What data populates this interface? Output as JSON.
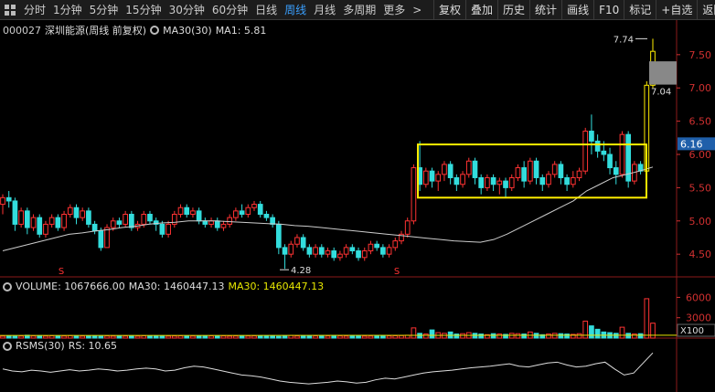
{
  "toolbar": {
    "periods": [
      {
        "label": "分时",
        "active": false
      },
      {
        "label": "1分钟",
        "active": false
      },
      {
        "label": "5分钟",
        "active": false
      },
      {
        "label": "15分钟",
        "active": false
      },
      {
        "label": "30分钟",
        "active": false
      },
      {
        "label": "60分钟",
        "active": false
      },
      {
        "label": "日线",
        "active": false
      },
      {
        "label": "周线",
        "active": true
      },
      {
        "label": "月线",
        "active": false
      },
      {
        "label": "多周期",
        "active": false
      },
      {
        "label": "更多",
        "active": false
      }
    ],
    "more_arrow": ">",
    "buttons": [
      "复权",
      "叠加",
      "历史",
      "统计",
      "画线",
      "F10",
      "标记",
      "+自选",
      "返回"
    ]
  },
  "stock": {
    "code": "000027",
    "name": "深圳能源(周线 前复权)",
    "ma_label": "MA30(30)",
    "ma_value": "MA1: 5.81"
  },
  "price_axis": {
    "ticks": [
      "7.50",
      "7.00",
      "6.50",
      "6.00",
      "5.50",
      "5.00",
      "4.50"
    ],
    "current_tag": "6.16"
  },
  "annotations": {
    "high_label": "7.74",
    "close_label": "7.04",
    "low_label": "4.28",
    "s_marker": "S"
  },
  "volume": {
    "label": "VOLUME: 1067666.00",
    "ma_label": "MA30: 1460447.13",
    "ma_yellow": "MA30: 1460447.13",
    "ticks": [
      "6000",
      "3000"
    ],
    "unit": "X100"
  },
  "rsms": {
    "label": "RSMS(30)",
    "value": "RS: 10.65"
  },
  "colors": {
    "up": "#ff3333",
    "down": "#33dddd",
    "ma": "#cccccc",
    "box": "#ffee00",
    "grid": "#8b1a1a",
    "axis_text": "#d03030"
  },
  "chart_data": {
    "type": "candlestick",
    "ylim": [
      4.2,
      7.8
    ],
    "volume_ylim": [
      0,
      7000
    ],
    "candles": [
      [
        5.25,
        5.35,
        5.1,
        5.4
      ],
      [
        5.35,
        5.3,
        5.2,
        5.45
      ],
      [
        5.3,
        4.95,
        4.85,
        5.35
      ],
      [
        4.95,
        5.15,
        4.9,
        5.2
      ],
      [
        5.15,
        4.9,
        4.8,
        5.2
      ],
      [
        4.9,
        5.05,
        4.85,
        5.1
      ],
      [
        5.05,
        4.8,
        4.75,
        5.1
      ],
      [
        4.8,
        4.95,
        4.75,
        5.0
      ],
      [
        4.95,
        5.05,
        4.9,
        5.1
      ],
      [
        5.05,
        4.9,
        4.85,
        5.1
      ],
      [
        4.9,
        5.1,
        4.85,
        5.15
      ],
      [
        5.1,
        5.2,
        5.05,
        5.25
      ],
      [
        5.2,
        5.05,
        4.95,
        5.25
      ],
      [
        5.05,
        5.15,
        5.0,
        5.2
      ],
      [
        5.15,
        4.95,
        4.9,
        5.2
      ],
      [
        4.95,
        4.85,
        4.8,
        5.0
      ],
      [
        4.85,
        4.6,
        4.55,
        4.9
      ],
      [
        4.6,
        4.9,
        4.6,
        4.95
      ],
      [
        4.9,
        5.0,
        4.85,
        5.05
      ],
      [
        5.0,
        4.95,
        4.9,
        5.05
      ],
      [
        4.95,
        5.1,
        4.9,
        5.15
      ],
      [
        5.1,
        4.9,
        4.85,
        5.15
      ],
      [
        4.9,
        4.95,
        4.85,
        5.0
      ],
      [
        4.95,
        5.1,
        4.9,
        5.15
      ],
      [
        5.1,
        5.0,
        4.95,
        5.15
      ],
      [
        5.0,
        4.95,
        4.85,
        5.05
      ],
      [
        4.95,
        4.8,
        4.75,
        5.0
      ],
      [
        4.8,
        4.95,
        4.75,
        5.0
      ],
      [
        4.95,
        5.1,
        4.9,
        5.15
      ],
      [
        5.1,
        5.2,
        5.05,
        5.25
      ],
      [
        5.2,
        5.1,
        5.05,
        5.25
      ],
      [
        5.1,
        5.15,
        5.05,
        5.2
      ],
      [
        5.15,
        5.0,
        4.95,
        5.2
      ],
      [
        5.0,
        4.95,
        4.9,
        5.05
      ],
      [
        4.95,
        5.0,
        4.9,
        5.05
      ],
      [
        5.0,
        4.9,
        4.85,
        5.05
      ],
      [
        4.9,
        4.95,
        4.85,
        5.0
      ],
      [
        4.95,
        5.05,
        4.9,
        5.1
      ],
      [
        5.05,
        5.15,
        5.0,
        5.2
      ],
      [
        5.15,
        5.1,
        5.05,
        5.25
      ],
      [
        5.1,
        5.2,
        5.05,
        5.25
      ],
      [
        5.2,
        5.25,
        5.15,
        5.3
      ],
      [
        5.25,
        5.1,
        5.05,
        5.3
      ],
      [
        5.1,
        5.05,
        5.0,
        5.15
      ],
      [
        5.05,
        4.95,
        4.9,
        5.1
      ],
      [
        4.95,
        4.6,
        4.5,
        5.0
      ],
      [
        4.6,
        4.5,
        4.28,
        4.65
      ],
      [
        4.5,
        4.65,
        4.45,
        4.7
      ],
      [
        4.65,
        4.75,
        4.6,
        4.8
      ],
      [
        4.75,
        4.6,
        4.55,
        4.8
      ],
      [
        4.6,
        4.5,
        4.45,
        4.65
      ],
      [
        4.5,
        4.6,
        4.45,
        4.65
      ],
      [
        4.6,
        4.5,
        4.45,
        4.65
      ],
      [
        4.5,
        4.55,
        4.45,
        4.6
      ],
      [
        4.55,
        4.45,
        4.4,
        4.6
      ],
      [
        4.45,
        4.5,
        4.4,
        4.55
      ],
      [
        4.5,
        4.6,
        4.45,
        4.65
      ],
      [
        4.6,
        4.55,
        4.5,
        4.65
      ],
      [
        4.55,
        4.45,
        4.4,
        4.6
      ],
      [
        4.45,
        4.55,
        4.4,
        4.6
      ],
      [
        4.55,
        4.65,
        4.5,
        4.7
      ],
      [
        4.65,
        4.6,
        4.55,
        4.7
      ],
      [
        4.6,
        4.5,
        4.45,
        4.65
      ],
      [
        4.5,
        4.6,
        4.45,
        4.65
      ],
      [
        4.6,
        4.7,
        4.55,
        4.75
      ],
      [
        4.7,
        4.8,
        4.65,
        4.85
      ],
      [
        4.8,
        5.0,
        4.75,
        5.05
      ],
      [
        5.0,
        5.8,
        4.95,
        5.85
      ],
      [
        5.8,
        5.55,
        5.45,
        6.2
      ],
      [
        5.55,
        5.75,
        5.5,
        5.8
      ],
      [
        5.75,
        5.6,
        5.5,
        5.8
      ],
      [
        5.6,
        5.7,
        5.45,
        5.75
      ],
      [
        5.7,
        5.85,
        5.6,
        5.9
      ],
      [
        5.85,
        5.65,
        5.55,
        5.9
      ],
      [
        5.65,
        5.55,
        5.45,
        5.7
      ],
      [
        5.55,
        5.7,
        5.5,
        5.75
      ],
      [
        5.7,
        5.9,
        5.65,
        5.95
      ],
      [
        5.9,
        5.65,
        5.55,
        5.95
      ],
      [
        5.65,
        5.5,
        5.4,
        5.7
      ],
      [
        5.5,
        5.65,
        5.45,
        5.7
      ],
      [
        5.65,
        5.55,
        5.45,
        5.7
      ],
      [
        5.55,
        5.6,
        5.4,
        5.65
      ],
      [
        5.6,
        5.5,
        5.35,
        5.65
      ],
      [
        5.5,
        5.65,
        5.45,
        5.7
      ],
      [
        5.65,
        5.8,
        5.6,
        5.85
      ],
      [
        5.8,
        5.6,
        5.5,
        5.9
      ],
      [
        5.6,
        5.9,
        5.55,
        5.95
      ],
      [
        5.9,
        5.65,
        5.55,
        5.95
      ],
      [
        5.65,
        5.55,
        5.45,
        5.7
      ],
      [
        5.55,
        5.7,
        5.5,
        5.75
      ],
      [
        5.7,
        5.85,
        5.65,
        5.9
      ],
      [
        5.85,
        5.65,
        5.55,
        5.9
      ],
      [
        5.65,
        5.55,
        5.45,
        5.7
      ],
      [
        5.55,
        5.65,
        5.5,
        5.75
      ],
      [
        5.65,
        5.75,
        5.6,
        5.8
      ],
      [
        5.75,
        6.35,
        5.7,
        6.4
      ],
      [
        6.35,
        6.2,
        6.0,
        6.6
      ],
      [
        6.2,
        6.05,
        5.95,
        6.3
      ],
      [
        6.05,
        6.0,
        5.9,
        6.2
      ],
      [
        6.0,
        5.8,
        5.7,
        6.1
      ],
      [
        5.8,
        5.7,
        5.55,
        5.9
      ],
      [
        5.7,
        6.3,
        5.65,
        6.35
      ],
      [
        6.3,
        5.6,
        5.5,
        6.35
      ],
      [
        5.6,
        5.85,
        5.55,
        5.9
      ],
      [
        5.85,
        5.75,
        5.7,
        5.9
      ],
      [
        5.75,
        7.04,
        5.7,
        7.1
      ],
      [
        7.04,
        7.55,
        7.0,
        7.74
      ]
    ],
    "ma30": [
      4.55,
      4.6,
      4.65,
      4.7,
      4.75,
      4.8,
      4.82,
      4.85,
      4.87,
      4.9,
      4.92,
      4.95,
      4.97,
      4.98,
      5.0,
      5.0,
      5.0,
      4.99,
      4.98,
      4.97,
      4.96,
      4.95,
      4.93,
      4.92,
      4.9,
      4.88,
      4.86,
      4.84,
      4.82,
      4.8,
      4.78,
      4.76,
      4.74,
      4.72,
      4.7,
      4.69,
      4.68,
      4.72,
      4.8,
      4.9,
      5.0,
      5.1,
      5.2,
      5.3,
      5.45,
      5.55,
      5.65,
      5.7,
      5.75,
      5.81
    ],
    "volume": [
      280,
      340,
      260,
      300,
      420,
      310,
      360,
      290,
      330,
      280,
      300,
      350,
      310,
      290,
      330,
      270,
      260,
      300,
      280,
      320,
      290,
      310,
      280,
      330,
      300,
      290,
      310,
      280,
      300,
      320,
      310,
      290,
      280,
      300,
      320,
      290,
      310,
      280,
      300,
      330,
      290,
      310,
      280,
      300,
      330,
      250,
      320,
      380,
      300,
      290,
      280,
      310,
      290,
      300,
      280,
      310,
      290,
      300,
      330,
      280,
      290,
      320,
      300,
      310,
      340,
      360,
      420,
      1500,
      700,
      600,
      1200,
      800,
      700,
      900,
      600,
      650,
      800,
      700,
      600,
      500,
      650,
      600,
      550,
      700,
      650,
      600,
      900,
      700,
      500,
      600,
      700,
      650,
      600,
      550,
      650,
      2500,
      1800,
      1300,
      900,
      800,
      700,
      1600,
      700,
      600,
      650,
      5800,
      2200
    ],
    "rsms": [
      0.55,
      0.5,
      0.48,
      0.52,
      0.5,
      0.47,
      0.5,
      0.53,
      0.5,
      0.52,
      0.55,
      0.53,
      0.5,
      0.52,
      0.55,
      0.57,
      0.55,
      0.5,
      0.52,
      0.58,
      0.62,
      0.6,
      0.55,
      0.5,
      0.45,
      0.4,
      0.38,
      0.35,
      0.3,
      0.25,
      0.22,
      0.2,
      0.18,
      0.2,
      0.22,
      0.25,
      0.23,
      0.2,
      0.22,
      0.28,
      0.32,
      0.3,
      0.35,
      0.4,
      0.45,
      0.48,
      0.5,
      0.52,
      0.55,
      0.58,
      0.6,
      0.62,
      0.65,
      0.68,
      0.62,
      0.6,
      0.65,
      0.7,
      0.72,
      0.65,
      0.6,
      0.62,
      0.68,
      0.72,
      0.55,
      0.4,
      0.45,
      0.7,
      0.95
    ]
  }
}
